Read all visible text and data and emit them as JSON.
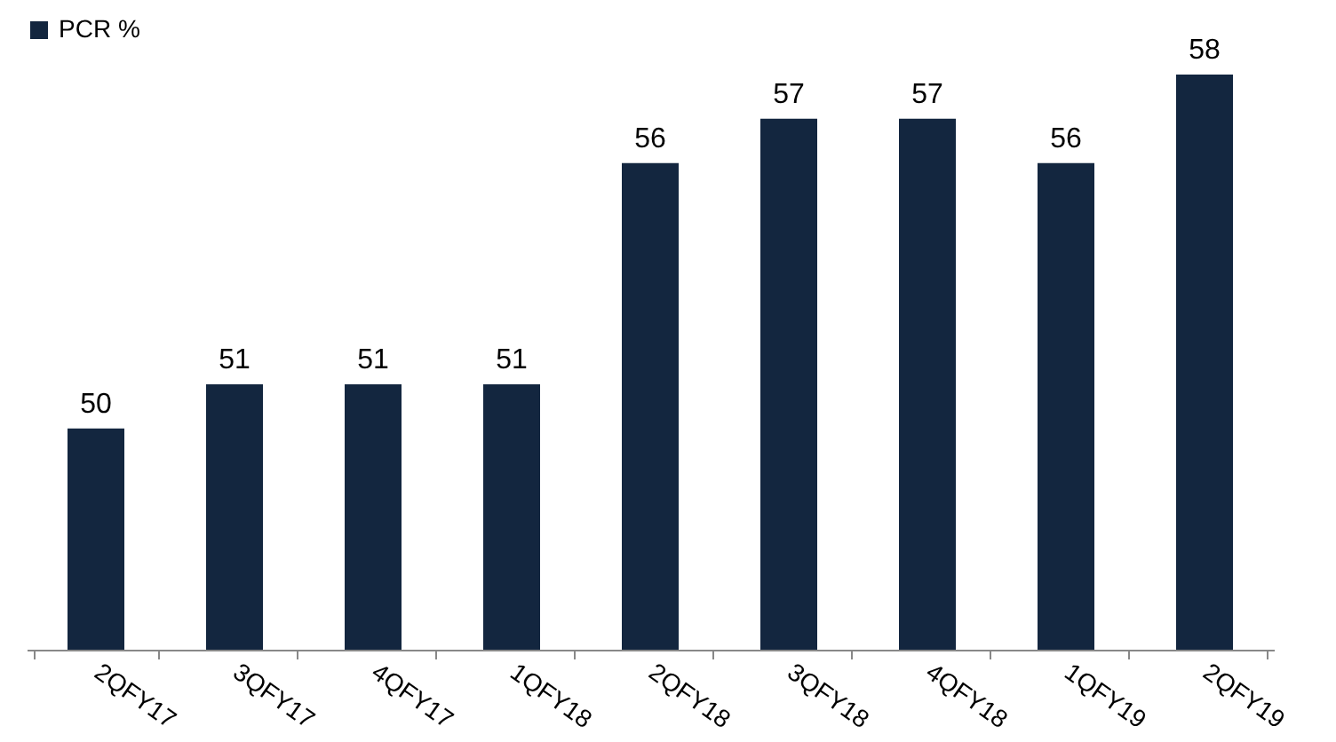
{
  "chart_data": {
    "type": "bar",
    "categories": [
      "2QFY17",
      "3QFY17",
      "4QFY17",
      "1QFY18",
      "2QFY18",
      "3QFY18",
      "4QFY18",
      "1QFY19",
      "2QFY19"
    ],
    "series": [
      {
        "name": "PCR %",
        "color": "#13263f",
        "values": [
          50,
          51,
          51,
          51,
          56,
          57,
          57,
          56,
          58
        ]
      }
    ],
    "ylim": [
      45,
      58
    ],
    "data_labels": true,
    "legend": "top",
    "grid": false,
    "tick_labels": "x"
  }
}
